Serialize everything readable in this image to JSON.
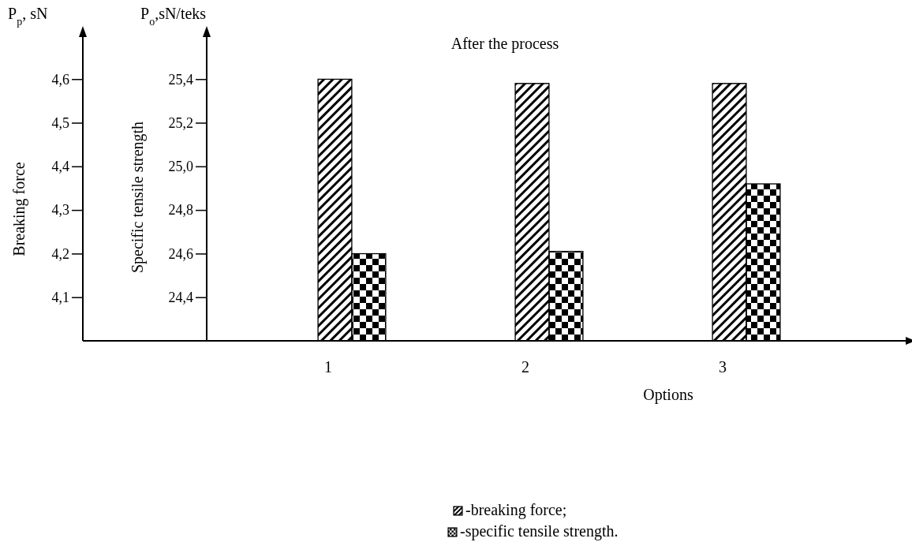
{
  "chart_data": {
    "type": "bar",
    "title": "After the process",
    "xlabel": "Options",
    "ylabel": "Breaking force",
    "y2label": "Specific tensile strength",
    "annotations": [
      "P$_{p}$, sN",
      "P$_{o}$,sN/teks"
    ],
    "categories": [
      "1",
      "2",
      "3"
    ],
    "series": [
      {
        "name": "-breaking force;",
        "color": "#000000",
        "values": [
          4.6,
          4.59,
          4.59
        ]
      },
      {
        "name": "-specific tensile strength.",
        "color": "#000000",
        "axis": "y2",
        "values": [
          24.6,
          24.61,
          24.92
        ]
      }
    ],
    "ylim": [
      4.0,
      4.7
    ],
    "yticks": [
      {
        "value": 4.1,
        "label": "4,1"
      },
      {
        "value": 4.2,
        "label": "4,2"
      },
      {
        "value": 4.3,
        "label": "4,3"
      },
      {
        "value": 4.4,
        "label": "4,4"
      },
      {
        "value": 4.5,
        "label": "4,5"
      },
      {
        "value": 4.6,
        "label": "4,6"
      }
    ],
    "y2lim": [
      24.2,
      25.6
    ],
    "y2ticks": [
      {
        "value": 24.4,
        "label": "24,4"
      },
      {
        "value": 24.6,
        "label": "24,6"
      },
      {
        "value": 24.8,
        "label": "24,8"
      },
      {
        "value": 25.0,
        "label": "25,0"
      },
      {
        "value": 25.2,
        "label": "25,2"
      },
      {
        "value": 25.4,
        "label": "25,4"
      }
    ],
    "legend": "bottom"
  }
}
